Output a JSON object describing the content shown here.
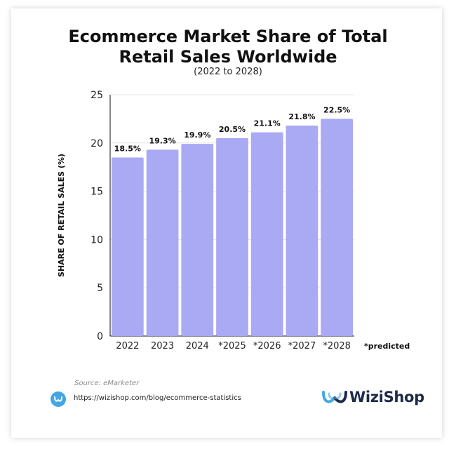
{
  "header": {
    "title_line1": "Ecommerce Market Share of Total",
    "title_line2": "Retail Sales Worldwide",
    "subtitle": "(2022 to 2028)"
  },
  "footer": {
    "source": "Source: eMarketer",
    "link": "https://wizishop.com/blog/ecommerce-statistics",
    "brand": "WiziShop",
    "brand_icon": "wizishop-logo-icon",
    "link_icon": "wizishop-badge-icon"
  },
  "colors": {
    "bar": "#a9a9f4",
    "grid": "#e3e3e3",
    "axis": "#111111",
    "brand_blue": "#45a7e0"
  },
  "chart_data": {
    "type": "bar",
    "categories": [
      "2022",
      "2023",
      "2024",
      "*2025",
      "*2026",
      "*2027",
      "*2028"
    ],
    "values": [
      18.5,
      19.3,
      19.9,
      20.5,
      21.1,
      21.8,
      22.5
    ],
    "data_labels": [
      "18.5%",
      "19.3%",
      "19.9%",
      "20.5%",
      "21.1%",
      "21.8%",
      "22.5%"
    ],
    "title": "Ecommerce Market Share of Total Retail Sales Worldwide",
    "subtitle": "(2022 to 2028)",
    "xlabel": "",
    "ylabel": "SHARE OF RETAIL SALES (%)",
    "ylim": [
      0,
      25
    ],
    "yticks": [
      0,
      5,
      10,
      15,
      20,
      25
    ],
    "grid": true,
    "annotation": "*predicted"
  }
}
